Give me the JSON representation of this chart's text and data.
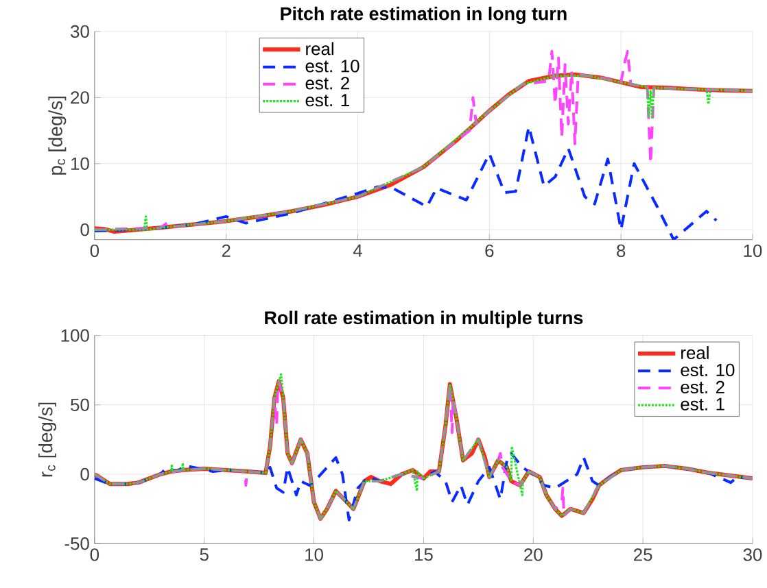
{
  "chart_data": [
    {
      "type": "line",
      "title": "Pitch rate estimation in long turn",
      "ylabel": "p$_{c}$ [deg/s]",
      "xlim": [
        0,
        10
      ],
      "ylim": [
        -1.5,
        30
      ],
      "xticks": [
        0,
        2,
        4,
        6,
        8,
        10
      ],
      "yticks": [
        0,
        10,
        20,
        30
      ],
      "grid": true,
      "legend": "top",
      "series": [
        {
          "name": "real",
          "color": "#ff2a1a",
          "line_style": "solid",
          "x": [
            0,
            0.15,
            0.3,
            1,
            1.5,
            2,
            2.5,
            3,
            3.5,
            4,
            4.5,
            5,
            5.5,
            6,
            6.3,
            6.6,
            7,
            7.3,
            7.7,
            8,
            8.3,
            8.7,
            9,
            9.5,
            10
          ],
          "values": [
            0.2,
            0.1,
            -0.3,
            0.3,
            0.8,
            1.3,
            2,
            2.8,
            3.8,
            5,
            6.8,
            9.5,
            13.5,
            18,
            20.5,
            22.5,
            23.3,
            23.5,
            23,
            22.3,
            21.6,
            21.5,
            21.3,
            21.1,
            21
          ]
        },
        {
          "name": "est. 10",
          "color": "#0a2aff",
          "line_style": "dashed",
          "x": [
            0,
            0.5,
            1,
            1.5,
            2,
            2.3,
            3,
            3.5,
            4,
            4.3,
            4.53,
            5.05,
            5.2,
            5.65,
            6,
            6.23,
            6.4,
            6.6,
            6.83,
            7,
            7.2,
            7.45,
            7.6,
            7.8,
            8,
            8.2,
            8.55,
            8.8,
            9.3,
            9.45
          ],
          "values": [
            -0.2,
            0,
            0.3,
            0.8,
            2,
            1,
            2.5,
            4,
            5.5,
            6.5,
            6.3,
            3.5,
            6.3,
            4.5,
            11.5,
            5.6,
            5.8,
            15.6,
            6.6,
            8,
            12.3,
            5,
            3.9,
            10.7,
            0,
            10,
            3.5,
            -1.5,
            2.8,
            1.4
          ]
        },
        {
          "name": "est. 2",
          "color": "#ff44ff",
          "line_style": "dashed",
          "x": [
            0,
            1,
            1.1,
            1.15,
            2,
            3,
            4,
            5,
            5.5,
            5.7,
            5.75,
            5.8,
            6,
            6.5,
            6.9,
            6.95,
            7,
            7.05,
            7.1,
            7.15,
            7.2,
            7.25,
            7.3,
            7.35,
            7.7,
            8,
            8.05,
            8.1,
            8.15,
            8.4,
            8.45,
            8.5,
            9,
            10
          ],
          "values": [
            0,
            0.3,
            1,
            0.4,
            1.3,
            2.8,
            5,
            9.5,
            13.5,
            15,
            20,
            16,
            18,
            22,
            22.5,
            27,
            19,
            26,
            14,
            25,
            16,
            24,
            13,
            23.5,
            23,
            22.3,
            25,
            27,
            22,
            21.6,
            10,
            21.5,
            21.3,
            21
          ]
        },
        {
          "name": "est. 1",
          "color": "#1ee61e",
          "line_style": "dotted",
          "x": [
            0,
            0.75,
            0.78,
            0.8,
            1,
            2,
            3,
            4,
            5,
            6,
            6.5,
            7,
            7.5,
            8,
            8.4,
            8.42,
            8.45,
            8.47,
            8.5,
            9,
            9.3,
            9.33,
            9.36,
            10
          ],
          "values": [
            0,
            0,
            2,
            0,
            0.3,
            1.3,
            2.8,
            5,
            9.5,
            18,
            22,
            23.3,
            23.3,
            22.3,
            21.6,
            17,
            21,
            17,
            21.5,
            21.3,
            21.2,
            19,
            21.2,
            21
          ]
        }
      ]
    },
    {
      "type": "line",
      "title": "Roll rate estimation in multiple turns",
      "ylabel": "r$_{c}$ [deg/s]",
      "xlim": [
        0,
        30
      ],
      "ylim": [
        -50,
        100
      ],
      "xticks": [
        0,
        5,
        10,
        15,
        20,
        25,
        30
      ],
      "yticks": [
        -50,
        0,
        50,
        100
      ],
      "grid": true,
      "legend": "top right",
      "series": [
        {
          "name": "real",
          "color": "#ff2a1a",
          "line_style": "solid",
          "x": [
            0,
            0.5,
            0.7,
            1.5,
            2,
            3,
            3.5,
            4,
            5,
            6,
            7,
            7.8,
            8,
            8.2,
            8.4,
            8.6,
            8.8,
            9,
            9.4,
            9.7,
            10,
            10.3,
            10.6,
            11,
            11.5,
            11.8,
            12.3,
            12.6,
            13,
            13.5,
            14,
            14.5,
            15,
            15.3,
            15.7,
            16,
            16.2,
            16.5,
            16.8,
            17.2,
            17.5,
            17.8,
            18,
            18.4,
            18.8,
            19,
            19.4,
            19.8,
            20.3,
            20.6,
            21,
            21.3,
            21.7,
            22.3,
            22.7,
            23,
            23.5,
            24,
            25,
            26,
            27,
            28,
            29,
            30
          ],
          "values": [
            0,
            -5,
            -7,
            -7,
            -6,
            0,
            2,
            3,
            4,
            3,
            2,
            1,
            20,
            55,
            67,
            55,
            15,
            8,
            25,
            15,
            -20,
            -32,
            -25,
            -12,
            -20,
            -25,
            -5,
            -2,
            -5,
            -7,
            0,
            3,
            -3,
            2,
            2,
            35,
            65,
            40,
            10,
            15,
            25,
            12,
            -2,
            10,
            5,
            -5,
            -8,
            2,
            -2,
            -15,
            -25,
            -30,
            -25,
            -28,
            -18,
            -8,
            -2,
            3,
            5,
            6,
            4,
            1,
            -1,
            -3
          ]
        },
        {
          "name": "est. 10",
          "color": "#0a2aff",
          "line_style": "dashed",
          "x": [
            0,
            0.5,
            0.7,
            1.5,
            2,
            3,
            3.3,
            3.7,
            4.2,
            5.4,
            6,
            7,
            7.8,
            8,
            8.3,
            8.6,
            8.8,
            9.2,
            9.4,
            9.8,
            10.2,
            10.6,
            11,
            11.3,
            11.6,
            12,
            12.5,
            13,
            14,
            15,
            15.5,
            16,
            16.3,
            16.7,
            17,
            17.5,
            18,
            18.5,
            18.8,
            19,
            19.5,
            20,
            20.5,
            21,
            21.5,
            22,
            22.3,
            22.7,
            23,
            23.5,
            24,
            25,
            26,
            27,
            28,
            29,
            29.3,
            30
          ],
          "values": [
            -3,
            -6,
            -7,
            -7,
            -6,
            0,
            5,
            2,
            6,
            2,
            3,
            2,
            1,
            5,
            -10,
            -13,
            5,
            -15,
            -5,
            -8,
            -2,
            5,
            12,
            0,
            -33,
            -10,
            -2,
            -5,
            0,
            -3,
            2,
            -5,
            -20,
            -8,
            -22,
            -5,
            5,
            -18,
            10,
            15,
            5,
            0,
            -8,
            -10,
            -5,
            0,
            12,
            -5,
            -8,
            -2,
            3,
            5,
            6,
            4,
            1,
            -6,
            -2,
            -3
          ]
        },
        {
          "name": "est. 2",
          "color": "#ff44ff",
          "line_style": "dashed",
          "x": [
            0,
            0.5,
            0.7,
            1.5,
            2,
            3,
            4,
            5,
            6,
            6.85,
            6.9,
            6.95,
            7.8,
            8,
            8.2,
            8.3,
            8.35,
            8.4,
            8.6,
            8.8,
            9,
            9.4,
            9.7,
            10,
            10.3,
            10.6,
            11,
            11.5,
            11.8,
            12.3,
            13,
            14,
            15,
            15.7,
            16,
            16.2,
            16.3,
            16.35,
            16.5,
            16.8,
            17.5,
            18,
            18.4,
            18.5,
            18.6,
            19,
            19.4,
            19.8,
            20.3,
            20.6,
            21,
            21.3,
            21.35,
            21.4,
            21.7,
            22.3,
            23,
            24,
            25,
            26,
            27,
            28,
            30
          ],
          "values": [
            0,
            -5,
            -7,
            -7,
            -6,
            0,
            3,
            4,
            3,
            2,
            -8,
            2,
            1,
            20,
            55,
            35,
            60,
            67,
            55,
            15,
            8,
            25,
            15,
            -20,
            -32,
            -25,
            -12,
            -20,
            -25,
            -5,
            -5,
            0,
            -3,
            2,
            35,
            65,
            30,
            55,
            40,
            10,
            25,
            -2,
            10,
            15,
            5,
            -5,
            -8,
            2,
            -2,
            -15,
            -25,
            -20,
            -10,
            -30,
            -25,
            -28,
            -8,
            3,
            5,
            6,
            4,
            1,
            -3
          ]
        },
        {
          "name": "est. 1",
          "color": "#1ee61e",
          "line_style": "dotted",
          "x": [
            0,
            0.5,
            0.7,
            1.5,
            2,
            3,
            3.5,
            3.52,
            3.55,
            4,
            4.02,
            4.05,
            5,
            6,
            7,
            7.8,
            8,
            8.2,
            8.4,
            8.5,
            8.6,
            8.8,
            9,
            9.4,
            9.7,
            10,
            10.3,
            10.6,
            11,
            11.5,
            11.8,
            12.3,
            13,
            14,
            14.5,
            14.7,
            14.72,
            15,
            15.7,
            16,
            16.2,
            16.5,
            16.8,
            17.5,
            18,
            18.4,
            18.8,
            19,
            19.02,
            19.4,
            19.5,
            19.52,
            19.8,
            20.3,
            20.6,
            21,
            21.3,
            21.7,
            22.3,
            23,
            24,
            25,
            26,
            27,
            28,
            29,
            30
          ],
          "values": [
            0,
            -5,
            -7,
            -7,
            -6,
            0,
            2,
            7,
            2,
            3,
            8,
            3,
            4,
            3,
            2,
            1,
            20,
            55,
            67,
            72,
            55,
            15,
            8,
            25,
            15,
            -20,
            -32,
            -25,
            -12,
            -20,
            -25,
            -5,
            -5,
            0,
            3,
            -12,
            2,
            -3,
            2,
            35,
            65,
            40,
            10,
            25,
            -2,
            10,
            5,
            -5,
            20,
            -8,
            -15,
            -5,
            2,
            -2,
            -15,
            -25,
            -30,
            -25,
            -28,
            -8,
            3,
            5,
            6,
            4,
            1,
            -1,
            -3
          ]
        }
      ]
    }
  ]
}
